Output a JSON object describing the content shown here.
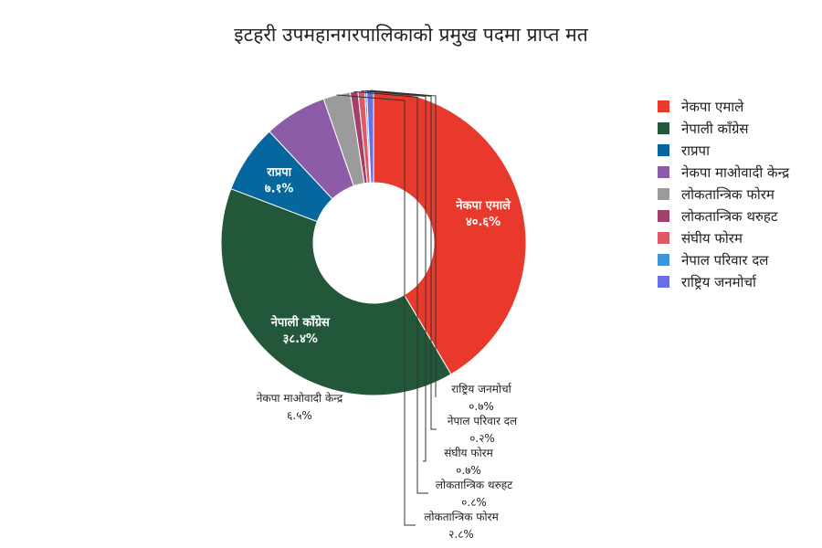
{
  "chart_data": {
    "type": "pie",
    "title": "इटहरी उपमहानगरपालिकाको प्रमुख पदमा प्राप्त मत",
    "legend_position": "right",
    "hole": true,
    "slices": [
      {
        "name": "नेकपा एमाले",
        "value": 40.6,
        "value_label": "४०.६%",
        "color": "#e8392c"
      },
      {
        "name": "नेपाली काँग्रेस",
        "value": 38.4,
        "value_label": "३८.४%",
        "color": "#23573a"
      },
      {
        "name": "राप्रपा",
        "value": 7.1,
        "value_label": "७.१%",
        "color": "#06679e"
      },
      {
        "name": "नेकपा माओवादी केन्द्र",
        "value": 6.5,
        "value_label": "६.५%",
        "color": "#8c5ca8"
      },
      {
        "name": "लोकतान्त्रिक फोरम",
        "value": 2.8,
        "value_label": "२.८%",
        "color": "#9b9b9b"
      },
      {
        "name": "लोकतान्त्रिक थरुहट",
        "value": 0.8,
        "value_label": "०.८%",
        "color": "#a23f6a"
      },
      {
        "name": "संघीय फोरम",
        "value": 0.7,
        "value_label": "०.७%",
        "color": "#e05a63"
      },
      {
        "name": "नेपाल परिवार दल",
        "value": 0.2,
        "value_label": "०.२%",
        "color": "#3d95dc"
      },
      {
        "name": "राष्ट्रिय जनमोर्चा",
        "value": 0.7,
        "value_label": "०.७%",
        "color": "#6a6ee8"
      }
    ]
  }
}
